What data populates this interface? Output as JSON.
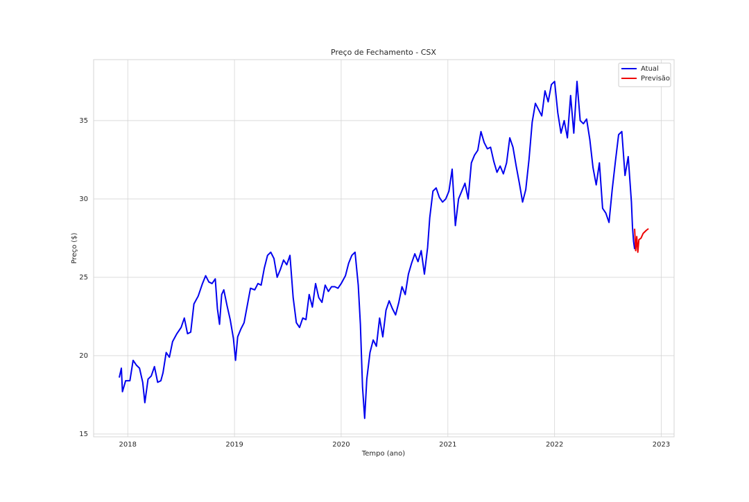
{
  "chart_data": {
    "type": "line",
    "title": "Preço de Fechamento - CSX",
    "xlabel": "Tempo (ano)",
    "ylabel": "Preço ($)",
    "xlim": [
      2017.68,
      2023.12
    ],
    "ylim": [
      14.82,
      38.89
    ],
    "xticks": [
      2018,
      2019,
      2020,
      2021,
      2022,
      2023
    ],
    "yticks": [
      15,
      20,
      25,
      30,
      35
    ],
    "grid": true,
    "legend": "upper right",
    "series": [
      {
        "name": "Atual",
        "color": "#0000ee",
        "x": [
          2017.92,
          2017.94,
          2017.95,
          2017.98,
          2018.02,
          2018.05,
          2018.08,
          2018.11,
          2018.14,
          2018.16,
          2018.19,
          2018.22,
          2018.25,
          2018.28,
          2018.31,
          2018.33,
          2018.36,
          2018.39,
          2018.42,
          2018.46,
          2018.5,
          2018.53,
          2018.56,
          2018.59,
          2018.62,
          2018.66,
          2018.7,
          2018.73,
          2018.76,
          2018.79,
          2018.82,
          2018.84,
          2018.86,
          2018.88,
          2018.9,
          2018.93,
          2018.96,
          2018.99,
          2019.01,
          2019.03,
          2019.06,
          2019.09,
          2019.12,
          2019.15,
          2019.19,
          2019.22,
          2019.25,
          2019.28,
          2019.31,
          2019.34,
          2019.37,
          2019.4,
          2019.43,
          2019.46,
          2019.49,
          2019.52,
          2019.55,
          2019.58,
          2019.61,
          2019.64,
          2019.67,
          2019.7,
          2019.73,
          2019.76,
          2019.79,
          2019.82,
          2019.85,
          2019.88,
          2019.91,
          2019.94,
          2019.97,
          2020.0,
          2020.04,
          2020.07,
          2020.1,
          2020.13,
          2020.16,
          2020.18,
          2020.2,
          2020.22,
          2020.24,
          2020.27,
          2020.3,
          2020.33,
          2020.36,
          2020.39,
          2020.42,
          2020.45,
          2020.48,
          2020.51,
          2020.54,
          2020.57,
          2020.6,
          2020.63,
          2020.66,
          2020.69,
          2020.72,
          2020.75,
          2020.78,
          2020.81,
          2020.83,
          2020.86,
          2020.89,
          2020.92,
          2020.95,
          2020.98,
          2021.01,
          2021.04,
          2021.07,
          2021.1,
          2021.13,
          2021.16,
          2021.19,
          2021.22,
          2021.25,
          2021.28,
          2021.31,
          2021.34,
          2021.37,
          2021.4,
          2021.43,
          2021.46,
          2021.49,
          2021.52,
          2021.55,
          2021.58,
          2021.61,
          2021.64,
          2021.67,
          2021.7,
          2021.73,
          2021.76,
          2021.79,
          2021.82,
          2021.85,
          2021.88,
          2021.91,
          2021.94,
          2021.97,
          2022.0,
          2022.03,
          2022.06,
          2022.09,
          2022.12,
          2022.15,
          2022.18,
          2022.21,
          2022.24,
          2022.27,
          2022.3,
          2022.33,
          2022.36,
          2022.39,
          2022.42,
          2022.45,
          2022.48,
          2022.51,
          2022.54,
          2022.57,
          2022.6,
          2022.63,
          2022.66,
          2022.69,
          2022.72,
          2022.73,
          2022.74,
          2022.75
        ],
        "values": [
          18.6,
          19.2,
          17.7,
          18.4,
          18.4,
          19.7,
          19.4,
          19.2,
          18.3,
          17.0,
          18.5,
          18.7,
          19.3,
          18.3,
          18.4,
          18.9,
          20.2,
          19.9,
          20.9,
          21.4,
          21.8,
          22.4,
          21.4,
          21.5,
          23.3,
          23.8,
          24.6,
          25.1,
          24.7,
          24.6,
          24.9,
          23.0,
          22.0,
          23.9,
          24.2,
          23.2,
          22.3,
          21.1,
          19.7,
          21.2,
          21.7,
          22.1,
          23.2,
          24.3,
          24.2,
          24.6,
          24.5,
          25.6,
          26.4,
          26.6,
          26.2,
          25.0,
          25.5,
          26.1,
          25.8,
          26.4,
          23.7,
          22.1,
          21.8,
          22.4,
          22.3,
          23.9,
          23.1,
          24.6,
          23.7,
          23.4,
          24.5,
          24.1,
          24.4,
          24.4,
          24.3,
          24.6,
          25.1,
          25.9,
          26.4,
          26.6,
          24.5,
          22.0,
          18.0,
          16.0,
          18.5,
          20.2,
          21.0,
          20.6,
          22.4,
          21.2,
          22.9,
          23.5,
          23.0,
          22.6,
          23.4,
          24.4,
          23.9,
          25.2,
          25.9,
          26.5,
          26.0,
          26.7,
          25.2,
          26.9,
          28.8,
          30.5,
          30.7,
          30.1,
          29.8,
          30.0,
          30.5,
          31.9,
          28.3,
          30.0,
          30.5,
          31.0,
          30.0,
          32.3,
          32.8,
          33.1,
          34.3,
          33.6,
          33.2,
          33.3,
          32.4,
          31.7,
          32.1,
          31.6,
          32.3,
          33.9,
          33.3,
          32.1,
          31.0,
          29.8,
          30.6,
          32.5,
          34.9,
          36.1,
          35.7,
          35.3,
          36.9,
          36.2,
          37.3,
          37.5,
          35.5,
          34.2,
          35.0,
          33.9,
          36.6,
          34.2,
          37.5,
          35.0,
          34.8,
          35.1,
          33.8,
          32.0,
          30.9,
          32.3,
          29.4,
          29.1,
          28.5,
          30.6,
          32.4,
          34.1,
          34.3,
          31.5,
          32.7,
          29.8,
          28.2,
          27.3,
          26.8
        ]
      },
      {
        "name": "Previsão",
        "color": "#ee0000",
        "x": [
          2022.75,
          2022.76,
          2022.77,
          2022.78,
          2022.79,
          2022.81,
          2022.83,
          2022.86,
          2022.88
        ],
        "values": [
          28.1,
          26.7,
          27.6,
          26.6,
          27.4,
          27.5,
          27.8,
          28.0,
          28.1
        ]
      }
    ]
  }
}
